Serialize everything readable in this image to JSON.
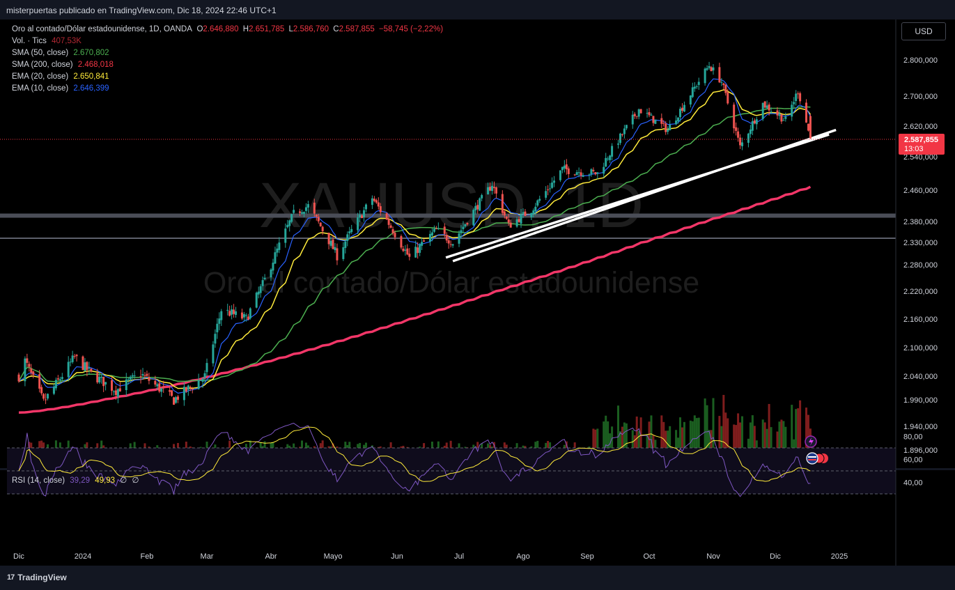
{
  "header": {
    "publisher_text": "misterpuertas publicado en TradingView.com, Dic 18, 2024 22:46 UTC+1"
  },
  "watermark": {
    "symbol": "XAUUSD, 1D",
    "name": "Oro al contado/Dólar estadounidense"
  },
  "legend": {
    "instrument": "Oro al contado/Dólar estadounidense, 1D, OANDA",
    "open_label": "O",
    "open": "2.646,880",
    "high_label": "H",
    "high": "2.651,785",
    "low_label": "L",
    "low": "2.586,760",
    "close_label": "C",
    "close": "2.587,855",
    "change": "−58,745 (−2,22%)",
    "volume_label": "Vol. · Tics",
    "volume": "407,53K",
    "indicators": [
      {
        "label": "SMA (50, close)",
        "value": "2.670,802",
        "color": "#4caf50"
      },
      {
        "label": "SMA (200, close)",
        "value": "2.468,018",
        "color": "#f23645"
      },
      {
        "label": "EMA (20, close)",
        "value": "2.650,841",
        "color": "#ffeb3b"
      },
      {
        "label": "EMA (10, close)",
        "value": "2.646,399",
        "color": "#2962ff"
      }
    ]
  },
  "currency_button": {
    "label": "USD"
  },
  "price_tag": {
    "price": "2.587,855",
    "countdown": "13:03",
    "color": "#f23645"
  },
  "rsi_legend": {
    "label": "RSI (14, close)",
    "rsi": "39,29",
    "rsi_ma": "49,93",
    "extra1": "∅",
    "extra2": "∅"
  },
  "footer": {
    "brand": "TradingView",
    "logo_mark": "17"
  },
  "colors": {
    "up": "#26a69a",
    "down": "#ef5350",
    "background": "#000000",
    "axis_text": "#d1d4dc"
  },
  "chart_data": {
    "type": "candlestick",
    "symbol": "XAUUSD",
    "timeframe": "1D",
    "price_axis_ticks": [
      2800000,
      2700000,
      2620000,
      2540000,
      2460000,
      2380000,
      2330000,
      2280000,
      2220000,
      2160000,
      2100000,
      2040000,
      1990000,
      1940000,
      1896000
    ],
    "price_axis_labels": [
      "2.800,000",
      "2.700,000",
      "2.620,000",
      "2.540,000",
      "2.460,000",
      "2.380,000",
      "2.330,000",
      "2.280,000",
      "2.220,000",
      "2.160,000",
      "2.100,000",
      "2.040,000",
      "1.990,000",
      "1.940,000",
      "1.896,000"
    ],
    "time_axis_labels": [
      "Dic",
      "2024",
      "Feb",
      "Mar",
      "Abr",
      "Mayo",
      "Jun",
      "Jul",
      "Ago",
      "Sep",
      "Oct",
      "Nov",
      "Dic",
      "2025"
    ],
    "rsi_axis_labels": [
      "80,00",
      "60,00",
      "40,00"
    ],
    "rsi_levels": [
      70,
      50,
      30
    ],
    "horizontal_levels": [
      2395,
      2340
    ],
    "price_path_keypoints": [
      {
        "date": "2023-12-01",
        "price": 2040
      },
      {
        "date": "2023-12-04",
        "price": 2072
      },
      {
        "date": "2023-12-13",
        "price": 1985
      },
      {
        "date": "2023-12-28",
        "price": 2080
      },
      {
        "date": "2024-01-05",
        "price": 2045
      },
      {
        "date": "2024-01-17",
        "price": 2010
      },
      {
        "date": "2024-01-29",
        "price": 2045
      },
      {
        "date": "2024-02-14",
        "price": 1990
      },
      {
        "date": "2024-02-29",
        "price": 2040
      },
      {
        "date": "2024-03-08",
        "price": 2180
      },
      {
        "date": "2024-03-20",
        "price": 2160
      },
      {
        "date": "2024-03-28",
        "price": 2235
      },
      {
        "date": "2024-04-12",
        "price": 2400
      },
      {
        "date": "2024-04-19",
        "price": 2420
      },
      {
        "date": "2024-05-03",
        "price": 2300
      },
      {
        "date": "2024-05-20",
        "price": 2440
      },
      {
        "date": "2024-06-07",
        "price": 2295
      },
      {
        "date": "2024-06-20",
        "price": 2360
      },
      {
        "date": "2024-06-28",
        "price": 2330
      },
      {
        "date": "2024-07-17",
        "price": 2475
      },
      {
        "date": "2024-07-25",
        "price": 2370
      },
      {
        "date": "2024-08-05",
        "price": 2410
      },
      {
        "date": "2024-08-20",
        "price": 2510
      },
      {
        "date": "2024-09-06",
        "price": 2500
      },
      {
        "date": "2024-09-26",
        "price": 2665
      },
      {
        "date": "2024-10-10",
        "price": 2610
      },
      {
        "date": "2024-10-30",
        "price": 2785
      },
      {
        "date": "2024-11-05",
        "price": 2740
      },
      {
        "date": "2024-11-14",
        "price": 2565
      },
      {
        "date": "2024-11-25",
        "price": 2680
      },
      {
        "date": "2024-12-06",
        "price": 2635
      },
      {
        "date": "2024-12-12",
        "price": 2715
      },
      {
        "date": "2024-12-18",
        "price": 2588
      }
    ]
  }
}
